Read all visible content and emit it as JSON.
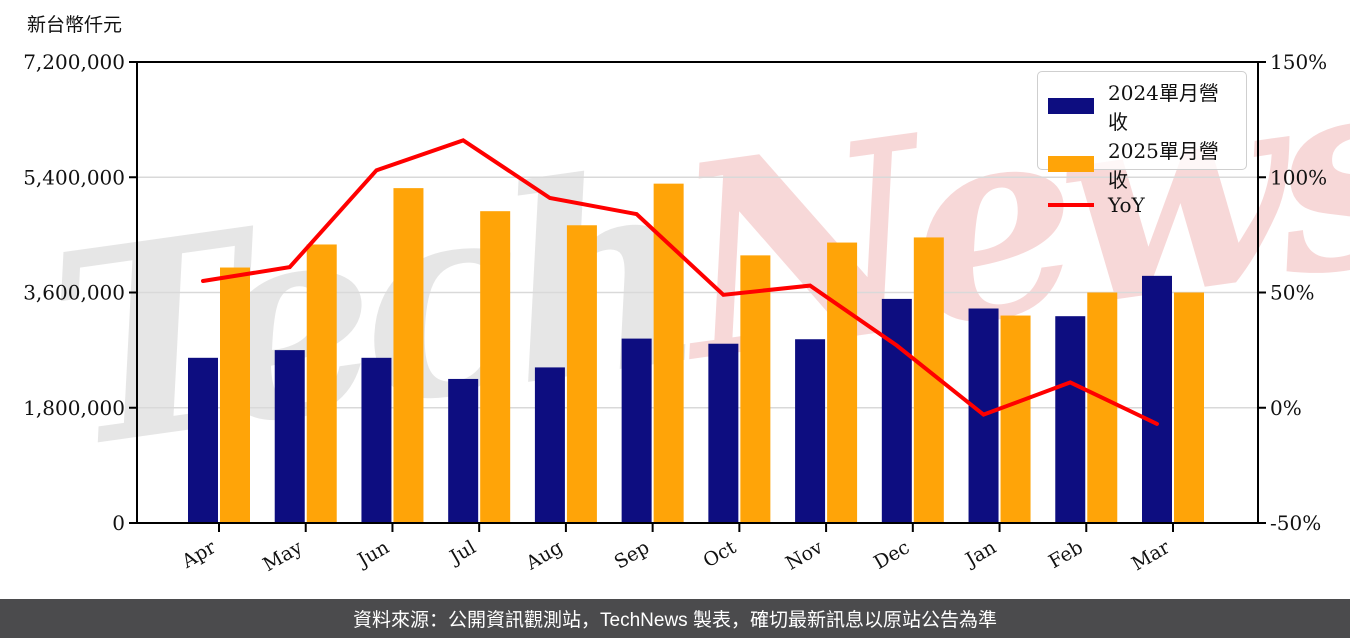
{
  "page": {
    "y_axis_title": "新台幣仟元",
    "watermark": {
      "part1": "Tech",
      "part2": "News",
      "color1": "#cfcfcf",
      "color2": "#f1b3b3"
    },
    "footer": {
      "text": "資料來源：公開資訊觀測站，TechNews 製表，確切最新訊息以原站公告為準",
      "background": "#4b4b4d",
      "text_color": "#ffffff"
    }
  },
  "legend": {
    "items": [
      {
        "label": "2024單月營收",
        "swatch": "box",
        "color": "#0d0d80"
      },
      {
        "label": "2025單月營收",
        "swatch": "box",
        "color": "#ffa408"
      },
      {
        "label": "YoY",
        "swatch": "line",
        "color": "#ff0000"
      }
    ]
  },
  "chart_data": {
    "type": "bar",
    "title": "",
    "unit_note": "values in 新台幣仟元 (NT$ thousands)",
    "categories": [
      "Apr",
      "May",
      "Jun",
      "Jul",
      "Aug",
      "Sep",
      "Oct",
      "Nov",
      "Dec",
      "Jan",
      "Feb",
      "Mar"
    ],
    "series": [
      {
        "name": "2024單月營收",
        "type": "bar",
        "axis": "left",
        "color": "#0d0d80",
        "values": [
          2580000,
          2700000,
          2580000,
          2250000,
          2430000,
          2880000,
          2800000,
          2870000,
          3500000,
          3350000,
          3230000,
          3860000
        ]
      },
      {
        "name": "2025單月營收",
        "type": "bar",
        "axis": "left",
        "color": "#ffa408",
        "values": [
          3990000,
          4350000,
          5230000,
          4870000,
          4650000,
          5300000,
          4180000,
          4380000,
          4460000,
          3240000,
          3600000,
          3600000
        ]
      },
      {
        "name": "YoY",
        "type": "line",
        "axis": "right",
        "color": "#ff0000",
        "unit": "%",
        "values": [
          55,
          61,
          103,
          116,
          91,
          84,
          49,
          53,
          27,
          -3,
          11,
          -7
        ]
      }
    ],
    "left_axis": {
      "title": "新台幣仟元",
      "range": [
        0,
        7200000
      ],
      "ticks": [
        0,
        1800000,
        3600000,
        5400000,
        7200000
      ],
      "tick_labels": [
        "0",
        "1,800,000",
        "3,600,000",
        "5,400,000",
        "7,200,000"
      ]
    },
    "right_axis": {
      "range": [
        -50,
        150
      ],
      "ticks": [
        -50,
        0,
        50,
        100,
        150
      ],
      "tick_labels": [
        "-50%",
        "0%",
        "50%",
        "100%",
        "150%"
      ]
    },
    "grid": true,
    "grid_color": "#d9d9d9",
    "legend_position": "top-right"
  }
}
